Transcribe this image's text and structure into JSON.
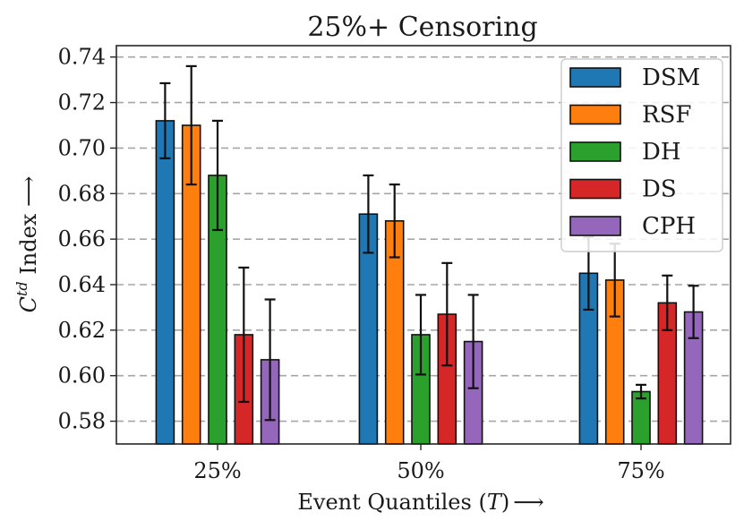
{
  "chart_data": {
    "type": "bar",
    "title": "25%+ Censoring",
    "xlabel_prefix": "Event Quantiles (",
    "xlabel_var": "T",
    "xlabel_suffix": ")",
    "xlabel_arrow": "⟶",
    "ylabel_base": "C",
    "ylabel_sup": "td",
    "ylabel_rest": " Index ⟶",
    "categories": [
      "25%",
      "50%",
      "75%"
    ],
    "ylim": [
      0.57,
      0.745
    ],
    "yticks": [
      "0.58",
      "0.60",
      "0.62",
      "0.64",
      "0.66",
      "0.68",
      "0.70",
      "0.72",
      "0.74"
    ],
    "grid": true,
    "legend_position": "top-right",
    "series": [
      {
        "name": "DSM",
        "color": "#1f77b4",
        "values": [
          0.712,
          0.671,
          0.645
        ],
        "errors": [
          0.0165,
          0.017,
          0.016
        ]
      },
      {
        "name": "RSF",
        "color": "#ff7f0e",
        "values": [
          0.71,
          0.668,
          0.642
        ],
        "errors": [
          0.026,
          0.016,
          0.016
        ]
      },
      {
        "name": "DH",
        "color": "#2ca02c",
        "values": [
          0.688,
          0.618,
          0.593
        ],
        "errors": [
          0.024,
          0.0175,
          0.003
        ]
      },
      {
        "name": "DS",
        "color": "#d62728",
        "values": [
          0.618,
          0.627,
          0.632
        ],
        "errors": [
          0.0295,
          0.0225,
          0.012
        ]
      },
      {
        "name": "CPH",
        "color": "#9467bd",
        "values": [
          0.607,
          0.615,
          0.628
        ],
        "errors": [
          0.0265,
          0.0205,
          0.0115
        ]
      }
    ]
  }
}
